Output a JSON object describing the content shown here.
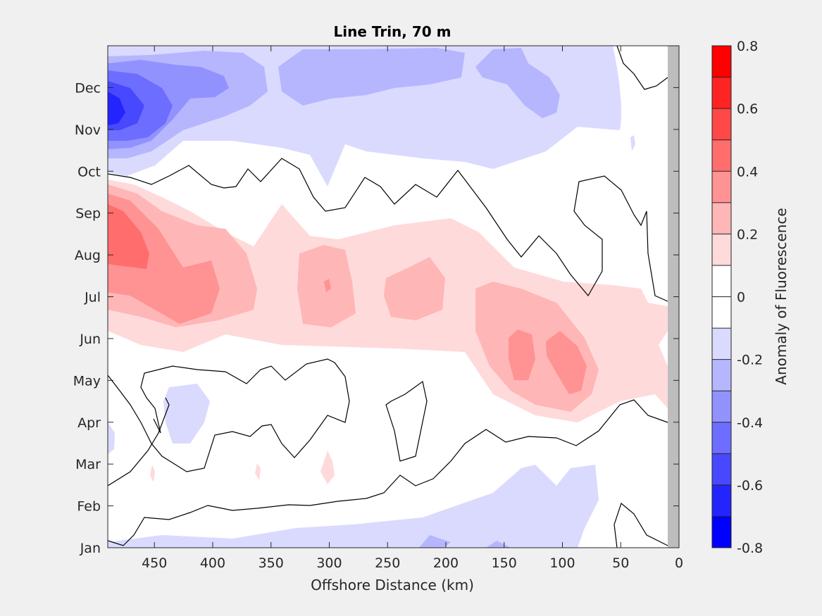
{
  "chart_data": {
    "type": "heatmap",
    "subtype": "filled-contour",
    "title": "Line Trin, 70 m",
    "xlabel": "Offshore Distance (km)",
    "ylabel": "",
    "x_reversed": true,
    "xlim": [
      490,
      0
    ],
    "xticks": [
      450,
      400,
      350,
      300,
      250,
      200,
      150,
      100,
      50,
      0
    ],
    "xtick_labels": [
      "450",
      "400",
      "350",
      "300",
      "250",
      "200",
      "150",
      "100",
      "50",
      "0"
    ],
    "yticks": [
      "Jan",
      "Feb",
      "Mar",
      "Apr",
      "May",
      "Jun",
      "Jul",
      "Aug",
      "Sep",
      "Oct",
      "Nov",
      "Dec"
    ],
    "colorbar": {
      "label": "Anomaly of Fluorescence",
      "range": [
        -0.8,
        0.8
      ],
      "levels": [
        -0.8,
        -0.7,
        -0.6,
        -0.5,
        -0.4,
        -0.3,
        -0.2,
        -0.1,
        0,
        0.1,
        0.2,
        0.3,
        0.4,
        0.5,
        0.6,
        0.7,
        0.8
      ],
      "tick_values": [
        0.8,
        0.6,
        0.4,
        0.2,
        0,
        -0.2,
        -0.4,
        -0.6,
        -0.8
      ],
      "tick_labels": [
        "0.8",
        "0.6",
        "0.4",
        "0.2",
        "0",
        "-0.2",
        "-0.4",
        "-0.6",
        "-0.8"
      ],
      "colors_low_to_high": [
        "#0000ff",
        "#2424ff",
        "#4848ff",
        "#6d6dff",
        "#9292ff",
        "#b6b6ff",
        "#dadaff",
        "#ffffff",
        "#ffffff",
        "#ffdada",
        "#ffb6b6",
        "#ff9292",
        "#ff6d6d",
        "#ff4848",
        "#ff2424",
        "#ff0000"
      ]
    },
    "no_data_region": {
      "x_range": [
        10,
        0
      ],
      "color": "#bdbdbd"
    },
    "zero_contour_color": "#000000",
    "features": [
      {
        "sign": "negative",
        "peak": -0.6,
        "x": 485,
        "month": "Nov",
        "note": "strong negative anomaly near offshore edge, Oct–Dec"
      },
      {
        "sign": "positive",
        "peak": 0.5,
        "x": 485,
        "month": "Aug",
        "note": "positive anomaly band Jun–Sep"
      },
      {
        "sign": "positive",
        "peak": 0.4,
        "x": 110,
        "month": "May",
        "note": "positive patch near shore, May–Jun"
      },
      {
        "sign": "negative",
        "peak": -0.2,
        "x": 250,
        "month": "Jan",
        "note": "weak negative anomaly Jan–Feb"
      }
    ]
  }
}
